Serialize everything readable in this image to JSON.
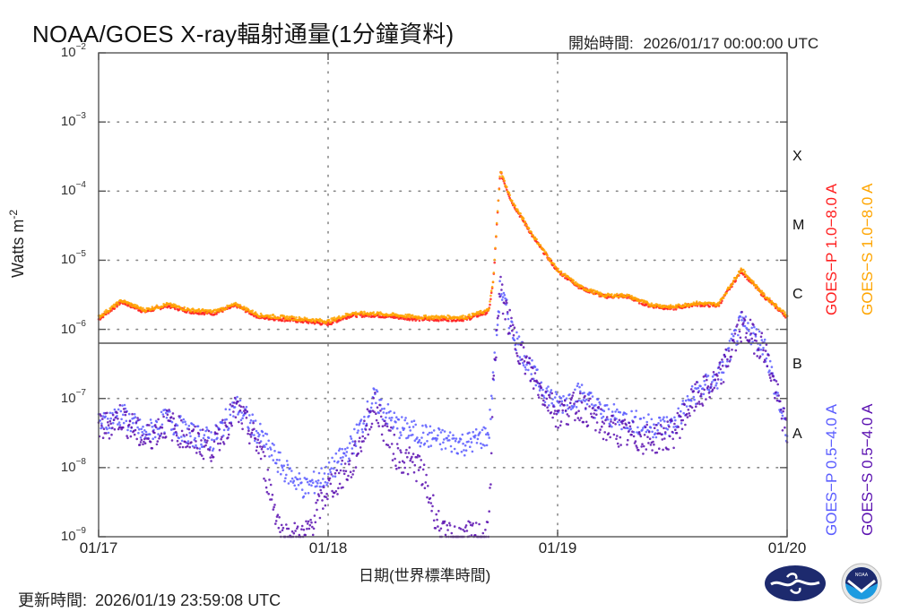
{
  "header": {
    "title": "NOAA/GOES X-ray輻射通量(1分鐘資料)",
    "start_time_label": "開始時間:",
    "start_time_value": "2026/01/17 00:00:00 UTC"
  },
  "footer": {
    "update_time_label": "更新時間:",
    "update_time_value": "2026/01/19 23:59:08 UTC"
  },
  "colors": {
    "goes_p_long": "#ff2020",
    "goes_s_long": "#ffa500",
    "goes_p_short": "#5a5cff",
    "goes_s_short": "#5a10b0",
    "axis": "#555555",
    "grid": "#888888"
  },
  "chart_data": {
    "type": "scatter",
    "title": "NOAA/GOES X-ray輻射通量(1分鐘資料)",
    "xlabel": "日期(世界標準時間)",
    "ylabel": "Watts m^-2",
    "yscale": "log",
    "ylim": [
      1e-09,
      0.01
    ],
    "xlim": [
      "01/17",
      "01/20"
    ],
    "x_ticks": [
      "01/17",
      "01/18",
      "01/19",
      "01/20"
    ],
    "y_ticks": [
      "10^-2",
      "10^-3",
      "10^-4",
      "10^-5",
      "10^-6",
      "10^-7",
      "10^-8",
      "10^-9"
    ],
    "y_tick_labels": [
      {
        "base": "10",
        "exp": "−2"
      },
      {
        "base": "10",
        "exp": "−3"
      },
      {
        "base": "10",
        "exp": "−4"
      },
      {
        "base": "10",
        "exp": "−5"
      },
      {
        "base": "10",
        "exp": "−6"
      },
      {
        "base": "10",
        "exp": "−7"
      },
      {
        "base": "10",
        "exp": "−8"
      },
      {
        "base": "10",
        "exp": "−9"
      }
    ],
    "flare_classes": [
      "X",
      "M",
      "C",
      "B",
      "A"
    ],
    "grid": true,
    "legend_position": "right, rotated vertical",
    "legend": [
      "GOES−P 1.0−8.0 A",
      "GOES−S 1.0−8.0 A",
      "GOES−P 0.5−4.0 A",
      "GOES−S 0.5−4.0 A"
    ],
    "x_days": [
      0,
      0.1,
      0.2,
      0.3,
      0.4,
      0.5,
      0.6,
      0.7,
      0.8,
      0.9,
      1.0,
      1.1,
      1.2,
      1.3,
      1.4,
      1.5,
      1.6,
      1.7,
      1.72,
      1.75,
      1.8,
      1.9,
      2.0,
      2.1,
      2.2,
      2.3,
      2.4,
      2.5,
      2.6,
      2.7,
      2.8,
      2.9,
      3.0
    ],
    "series": [
      {
        "name": "GOES−P 1.0−8.0 A",
        "values": [
          1.4e-06,
          2.5e-06,
          1.8e-06,
          2.2e-06,
          1.8e-06,
          1.7e-06,
          2.2e-06,
          1.5e-06,
          1.4e-06,
          1.3e-06,
          1.2e-06,
          1.6e-06,
          1.6e-06,
          1.5e-06,
          1.4e-06,
          1.4e-06,
          1.4e-06,
          1.8e-06,
          5e-06,
          0.00019,
          7e-05,
          2e-05,
          7e-06,
          4e-06,
          3e-06,
          3e-06,
          2.2e-06,
          2e-06,
          2.3e-06,
          2.2e-06,
          7e-06,
          3e-06,
          1.5e-06
        ]
      },
      {
        "name": "GOES−S 1.0−8.0 A",
        "values": [
          1.5e-06,
          2.6e-06,
          1.9e-06,
          2.3e-06,
          1.9e-06,
          1.8e-06,
          2.3e-06,
          1.6e-06,
          1.5e-06,
          1.4e-06,
          1.3e-06,
          1.7e-06,
          1.7e-06,
          1.6e-06,
          1.5e-06,
          1.5e-06,
          1.5e-06,
          1.9e-06,
          5.2e-06,
          0.0002,
          7.2e-05,
          2.1e-05,
          7.2e-06,
          4.1e-06,
          3.1e-06,
          3.1e-06,
          2.3e-06,
          2.1e-06,
          2.4e-06,
          2.3e-06,
          7.5e-06,
          3.1e-06,
          1.6e-06
        ]
      },
      {
        "name": "GOES−P 0.5−4.0 A",
        "values": [
          4e-08,
          6e-08,
          3e-08,
          5e-08,
          3e-08,
          2.5e-08,
          8e-08,
          3e-08,
          1e-08,
          5e-09,
          8e-09,
          2e-08,
          1e-07,
          4e-08,
          3e-08,
          2.5e-08,
          2.2e-08,
          3e-08,
          2e-07,
          4e-06,
          1e-06,
          2e-07,
          8e-08,
          1.2e-07,
          6e-08,
          5e-08,
          4e-08,
          4e-08,
          1.2e-07,
          2e-07,
          1.2e-06,
          6e-07,
          3e-08
        ]
      },
      {
        "name": "GOES−S 0.5−4.0 A",
        "values": [
          3.5e-08,
          5.5e-08,
          2.5e-08,
          4.5e-08,
          2.5e-08,
          2e-08,
          7e-08,
          2e-08,
          1e-09,
          1e-09,
          5e-09,
          1e-08,
          8e-08,
          1.5e-08,
          1e-08,
          1e-09,
          1e-09,
          1e-09,
          1.8e-07,
          3.8e-06,
          9e-07,
          1.8e-07,
          6e-08,
          8e-08,
          4e-08,
          3e-08,
          2.5e-08,
          3e-08,
          1e-07,
          1.8e-07,
          1.1e-06,
          5.5e-07,
          3e-08
        ]
      }
    ]
  },
  "axis": {
    "xlabel": "日期(世界標準時間)",
    "ylabel_base": "Watts m",
    "ylabel_exp": "-2"
  },
  "logos": [
    {
      "name": "cwa-logo"
    },
    {
      "name": "noaa-logo",
      "text": "NOAA"
    }
  ]
}
